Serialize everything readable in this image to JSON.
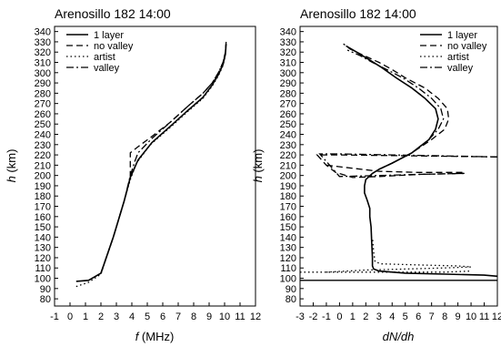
{
  "chart_data": [
    {
      "type": "line",
      "title": "Arenosillo 182 14:00",
      "xlabel_var": "f",
      "xlabel_unit": " (MHz)",
      "ylabel_var": "h",
      "ylabel_unit": " (km)",
      "xlim": [
        -1,
        12
      ],
      "ylim": [
        73,
        345
      ],
      "xticks": [
        -1,
        0,
        1,
        2,
        3,
        4,
        5,
        6,
        7,
        8,
        9,
        10,
        11,
        12
      ],
      "yticks": [
        80,
        90,
        100,
        110,
        120,
        130,
        140,
        150,
        160,
        170,
        180,
        190,
        200,
        210,
        220,
        230,
        240,
        250,
        260,
        270,
        280,
        290,
        300,
        310,
        320,
        330,
        340
      ],
      "legend_position": "top-left",
      "series": [
        {
          "name": "1 layer",
          "style": "solid",
          "x": [
            0.4,
            1.2,
            2.0,
            2.8,
            3.5,
            3.9,
            4.4,
            5.3,
            6.5,
            7.6,
            8.6,
            9.2,
            9.6,
            9.9,
            10.05,
            10.1
          ],
          "y": [
            97,
            98,
            105,
            140,
            175,
            198,
            215,
            232,
            248,
            263,
            276,
            288,
            298,
            308,
            318,
            328
          ]
        },
        {
          "name": "no valley",
          "style": "dashed",
          "x": [
            2.0,
            2.8,
            3.5,
            3.9,
            3.9,
            4.4,
            5.3,
            6.5,
            7.6,
            8.6,
            9.2,
            9.6,
            9.9,
            10.05,
            10.1
          ],
          "y": [
            105,
            140,
            175,
            198,
            222,
            228,
            238,
            252,
            267,
            280,
            290,
            300,
            310,
            320,
            330
          ]
        },
        {
          "name": "artist",
          "style": "dotted",
          "x": [
            0.4,
            1.2,
            2.0,
            2.8,
            3.5,
            3.9,
            4.3,
            5.2,
            6.5,
            7.6,
            8.6,
            9.2,
            9.6,
            9.9,
            10.05
          ],
          "y": [
            92,
            96,
            104,
            140,
            175,
            196,
            212,
            230,
            247,
            262,
            275,
            287,
            297,
            307,
            317
          ]
        },
        {
          "name": "valley",
          "style": "dashdot",
          "x": [
            2.0,
            2.8,
            3.5,
            3.9,
            4.2,
            4.4,
            5.3,
            6.5,
            7.6,
            8.6,
            9.2,
            9.6,
            9.9,
            10.05,
            10.1
          ],
          "y": [
            105,
            140,
            175,
            200,
            214,
            222,
            236,
            252,
            267,
            280,
            290,
            300,
            310,
            320,
            330
          ]
        }
      ]
    },
    {
      "type": "line",
      "title": "Arenosillo 182 14:00",
      "xlabel_var": "dN/dh",
      "xlabel_unit": "",
      "ylabel_var": "h",
      "ylabel_unit": " (km)",
      "xlim": [
        -3,
        12
      ],
      "ylim": [
        73,
        345
      ],
      "xticks": [
        -3,
        -2,
        -1,
        0,
        1,
        2,
        3,
        4,
        5,
        6,
        7,
        8,
        9,
        10,
        11,
        12
      ],
      "yticks": [
        80,
        90,
        100,
        110,
        120,
        130,
        140,
        150,
        160,
        170,
        180,
        190,
        200,
        210,
        220,
        230,
        240,
        250,
        260,
        270,
        280,
        290,
        300,
        310,
        320,
        330,
        340
      ],
      "legend_position": "top-right",
      "series": [
        {
          "name": "1 layer",
          "style": "solid",
          "x": [
            12,
            11,
            8,
            5,
            3,
            2.6,
            2.5,
            2.5,
            2.45,
            2.4,
            2.3,
            2.3,
            2.1,
            1.9,
            1.9,
            2.0,
            2.5,
            3.0,
            4.0,
            5.5,
            6.8,
            7.3,
            7.5,
            7.3,
            6.5,
            5.5,
            4.3,
            3.2,
            2.2,
            1.3,
            0.5
          ],
          "y": [
            102,
            103,
            104,
            105,
            107,
            109,
            112,
            120,
            135,
            150,
            160,
            168,
            176,
            183,
            190,
            196,
            202,
            206,
            212,
            222,
            235,
            245,
            255,
            265,
            275,
            285,
            295,
            305,
            313,
            320,
            326
          ]
        },
        {
          "name": "no valley",
          "style": "dashed",
          "x": [
            3.0,
            4.0,
            5.5,
            7.0,
            8.0,
            8.3,
            8.2,
            7.5,
            6.5,
            5.0,
            4.0,
            3.0,
            1.8,
            0.8,
            0.3
          ],
          "y": [
            206,
            212,
            222,
            235,
            245,
            255,
            265,
            275,
            285,
            295,
            303,
            310,
            317,
            323,
            328
          ]
        },
        {
          "name": "artist",
          "style": "dotted",
          "x": [
            -1,
            2,
            5,
            8,
            10,
            9,
            6,
            3.2,
            2.7,
            2.6,
            2.5
          ],
          "y": [
            106,
            108,
            109,
            110,
            111,
            112,
            113,
            114,
            116,
            125,
            140
          ]
        },
        {
          "name": "valley",
          "style": "dashdot",
          "x": [
            3.0,
            4.0,
            5.5,
            6.8,
            7.5,
            7.9,
            7.7,
            7.0,
            6.0,
            4.8,
            3.6,
            2.5,
            1.5,
            0.6
          ],
          "y": [
            206,
            212,
            222,
            235,
            245,
            255,
            265,
            275,
            285,
            295,
            303,
            310,
            317,
            322
          ]
        }
      ],
      "extra_paths": [
        {
          "series": "no valley",
          "style": "dashed",
          "x": [
            12,
            0,
            -1.7,
            -1.0,
            -0.3,
            1.0,
            3.0,
            6.0,
            9.5
          ],
          "y": [
            218,
            220,
            220,
            210,
            203,
            198,
            199,
            201,
            202
          ]
        },
        {
          "series": "no valley",
          "style": "dashed",
          "x": [
            -1.0,
            3.0,
            6.0,
            9.5
          ],
          "y": [
            210,
            204,
            203,
            203
          ]
        },
        {
          "series": "valley",
          "style": "dashdot",
          "x": [
            12,
            4,
            0,
            -1.5,
            0,
            3,
            6,
            9.5
          ],
          "y": [
            218,
            220,
            221,
            221,
            199,
            200,
            201,
            202
          ]
        },
        {
          "series": "artist",
          "style": "dotted",
          "x": [
            -3,
            0,
            4,
            8,
            10
          ],
          "y": [
            106,
            106,
            106,
            106,
            107
          ]
        }
      ],
      "reference_line_y": 98
    }
  ]
}
